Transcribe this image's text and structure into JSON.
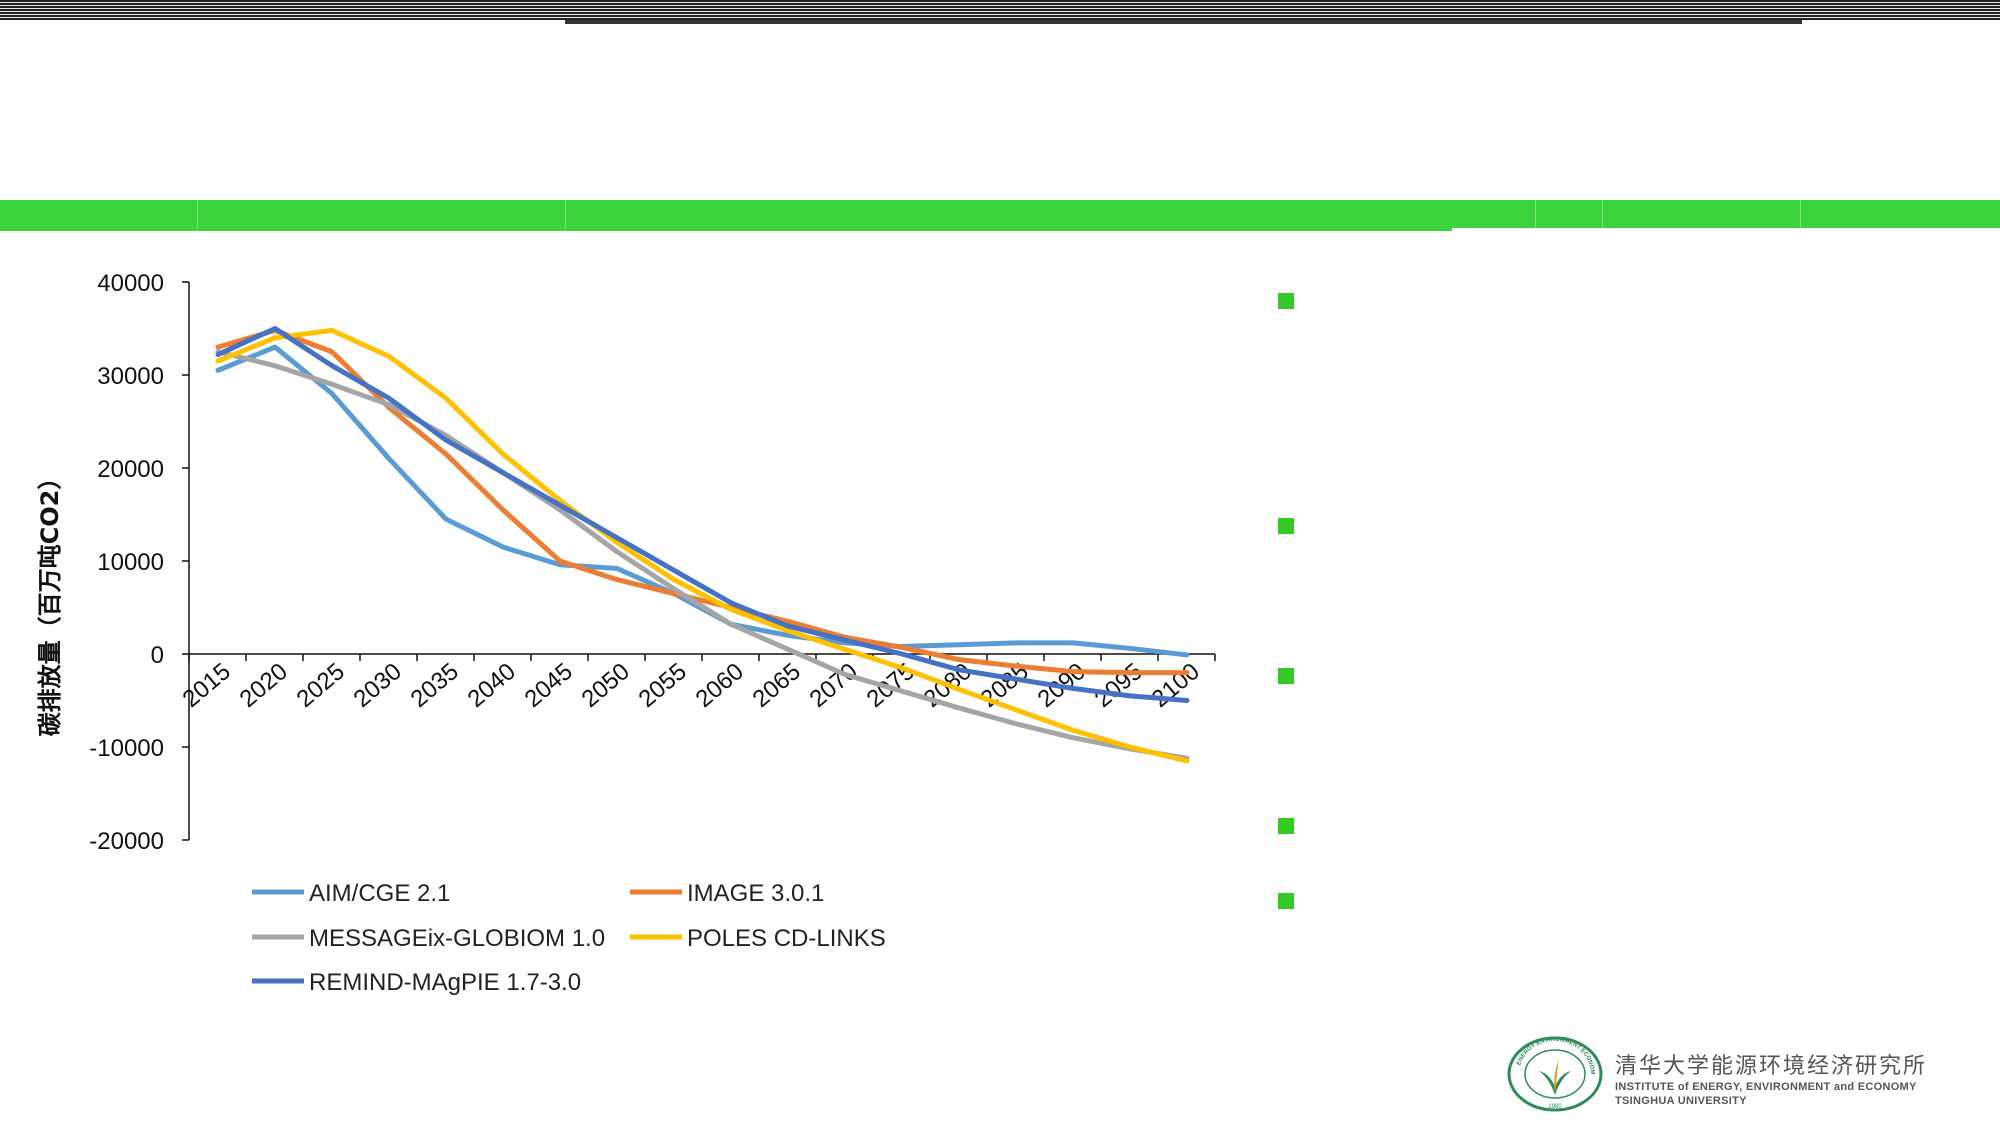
{
  "chart_data": {
    "type": "line",
    "title": "",
    "xlabel": "",
    "ylabel": "碳排放量（百万吨CO2）",
    "x": [
      2015,
      2020,
      2025,
      2030,
      2035,
      2040,
      2045,
      2050,
      2055,
      2060,
      2065,
      2070,
      2075,
      2080,
      2085,
      2090,
      2095,
      2100
    ],
    "x_tick_labels": [
      "2015",
      "2020",
      "2025",
      "2030",
      "2035",
      "2040",
      "2045",
      "2050",
      "2055",
      "2060",
      "2065",
      "2070",
      "2075",
      "2080",
      "2085",
      "2090",
      "2095",
      "2100"
    ],
    "ylim": [
      -20000,
      40000
    ],
    "y_ticks": [
      40000,
      30000,
      20000,
      10000,
      0,
      -10000,
      -20000
    ],
    "y_tick_labels": [
      "40000",
      "30000",
      "20000",
      "10000",
      "0",
      "-10000",
      "-20000"
    ],
    "grid": false,
    "legend_position": "bottom",
    "series": [
      {
        "name": "AIM/CGE 2.1",
        "color": "#5b9bd5",
        "values": [
          30500,
          33000,
          28000,
          21000,
          14500,
          11500,
          9600,
          9200,
          6500,
          3200,
          2000,
          1200,
          800,
          1000,
          1200,
          1200,
          600,
          -100
        ]
      },
      {
        "name": "IMAGE 3.0.1",
        "color": "#ed7d31",
        "values": [
          33000,
          34800,
          32500,
          26500,
          21500,
          15500,
          10000,
          8000,
          6500,
          5000,
          3500,
          1800,
          700,
          -600,
          -1300,
          -1900,
          -2000,
          -2000
        ]
      },
      {
        "name": "MESSAGEix-GLOBIOM 1.0",
        "color": "#a5a5a5",
        "values": [
          32500,
          31000,
          29000,
          26800,
          23500,
          19500,
          15500,
          11000,
          7000,
          3200,
          500,
          -2200,
          -4000,
          -5800,
          -7500,
          -9000,
          -10200,
          -11200
        ]
      },
      {
        "name": "POLES CD-LINKS",
        "color": "#ffc000",
        "values": [
          31500,
          34000,
          34800,
          32000,
          27500,
          21500,
          16500,
          12000,
          8000,
          4800,
          2500,
          500,
          -1500,
          -3800,
          -6000,
          -8200,
          -10000,
          -11500
        ]
      },
      {
        "name": "REMIND-MAgPIE 1.7-3.0",
        "color": "#4472c4",
        "values": [
          32200,
          35000,
          31000,
          27500,
          23000,
          19500,
          16000,
          12500,
          9000,
          5500,
          3000,
          1500,
          0,
          -1700,
          -2700,
          -3700,
          -4500,
          -5000
        ]
      }
    ]
  },
  "logo": {
    "cn": "清华大学能源环境经济研究所",
    "en1": "INSTITUTE of ENERGY, ENVIRONMENT and ECONOMY",
    "en2": "TSINGHUA UNIVERSITY",
    "ring_text": "ENERGY ENVIRONMENT ECONOMY",
    "year": "1980"
  }
}
